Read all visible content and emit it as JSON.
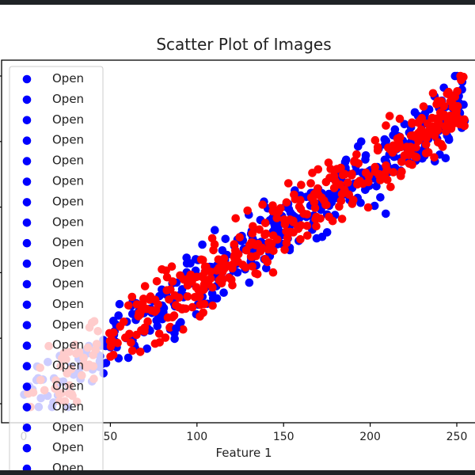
{
  "chart_data": {
    "type": "scatter",
    "title": "Scatter Plot of Images",
    "xlabel": "Feature 1",
    "ylabel": "",
    "x_ticks": [
      0,
      50,
      100,
      150,
      200,
      250
    ],
    "x_tick_labels": [
      "0",
      "50",
      "100",
      "150",
      "200",
      "250"
    ],
    "xlim": [
      -5,
      260
    ],
    "ylim": [
      0,
      1
    ],
    "grid": false,
    "legend": {
      "placement": "upper-left",
      "labels": [
        "Open",
        "Open",
        "Open",
        "Open",
        "Open",
        "Open",
        "Open",
        "Open",
        "Open",
        "Open",
        "Open",
        "Open",
        "Open",
        "Open",
        "Open",
        "Open",
        "Open",
        "Open",
        "Open",
        "Open"
      ]
    },
    "series": [
      {
        "color": "#0000ff",
        "trend": {
          "slope": 0.0036,
          "intercept": 0.0
        },
        "spread": 0.05,
        "count": 420
      },
      {
        "color": "#ff0000",
        "trend": {
          "slope": 0.0036,
          "intercept": 0.0
        },
        "spread": 0.05,
        "count": 420
      }
    ],
    "outliers": [
      {
        "color": "#0000ff",
        "x": 209,
        "y": 0.58
      },
      {
        "color": "#0000ff",
        "x": 88,
        "y": 0.23
      }
    ]
  }
}
